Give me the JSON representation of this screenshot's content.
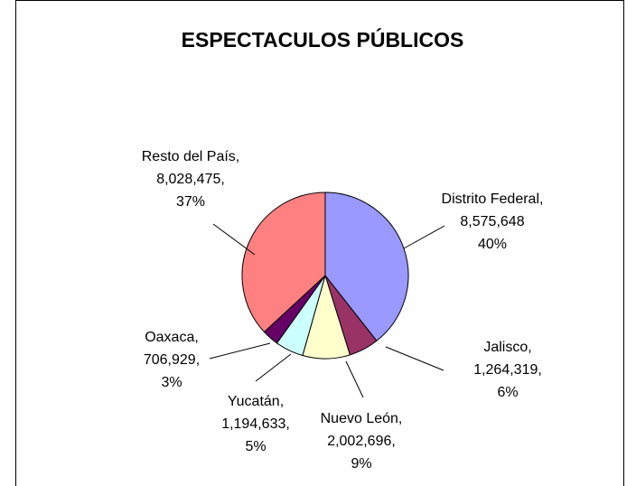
{
  "chart_data": {
    "type": "pie",
    "title": "ESPECTACULOS PÚBLICOS",
    "slices": [
      {
        "name": "Distrito Federal",
        "value_label": "8,575,648",
        "value": 8575648,
        "percent_label": "40%",
        "color": "#9999ff",
        "sep": ""
      },
      {
        "name": "Jalisco",
        "value_label": "1,264,319",
        "value": 1264319,
        "percent_label": "6%",
        "color": "#993366",
        "sep": ","
      },
      {
        "name": "Nuevo León",
        "value_label": "2,002,696",
        "value": 2002696,
        "percent_label": "9%",
        "color": "#ffffcc",
        "sep": ","
      },
      {
        "name": "Yucatán",
        "value_label": "1,194,633",
        "value": 1194633,
        "percent_label": "5%",
        "color": "#ccffff",
        "sep": ","
      },
      {
        "name": "Oaxaca",
        "value_label": "706,929",
        "value": 706929,
        "percent_label": "3%",
        "color": "#660066",
        "sep": ","
      },
      {
        "name": "Resto del País",
        "value_label": "8,028,475",
        "value": 8028475,
        "percent_label": "37%",
        "color": "#ff8080",
        "sep": ","
      }
    ]
  }
}
